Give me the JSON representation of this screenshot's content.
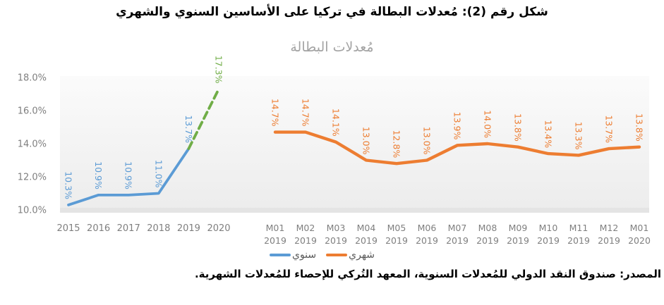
{
  "figure_title": "شكل رقم (2): مُعدلات البطالة في تركيا على الأساسين السنوي والشهري",
  "chart": {
    "title": "مُعدلات البطالة",
    "legend": [
      {
        "key": "annual",
        "label": "سنوي",
        "color": "#5B9BD5"
      },
      {
        "key": "monthly",
        "label": "شهري",
        "color": "#ED7D31"
      }
    ],
    "source": "المصدر: صندوق النقد الدولي للمُعدلات السنوية، المعهد التُركي للإحصاء للمُعدلات الشهرية."
  },
  "colors": {
    "annual_line": "#5B9BD5",
    "forecast_line": "#70AD47",
    "monthly_line": "#ED7D31",
    "axis_text": "#7F7F7F",
    "chart_title_text": "#A3A3A3",
    "legend_text": "#595959",
    "plot_bg_top": "#FBFBFB",
    "plot_bg_bottom": "#ECECEC",
    "axis_strip": "#E4E4E4"
  },
  "chart_data": {
    "type": "line",
    "title": "مُعدلات البطالة",
    "ylim": [
      10,
      18
    ],
    "grid": false,
    "legend_position": "bottom",
    "yticks": [
      {
        "value": 10,
        "label": "10.0%"
      },
      {
        "value": 12,
        "label": "12.0%"
      },
      {
        "value": 14,
        "label": "14.0%"
      },
      {
        "value": 16,
        "label": "16.0%"
      },
      {
        "value": 18,
        "label": "18.0%"
      }
    ],
    "series": [
      {
        "name": "سنوي",
        "color": "#5B9BD5",
        "categories": [
          "2015",
          "2016",
          "2017",
          "2018",
          "2019",
          "2020"
        ],
        "values": [
          10.3,
          10.9,
          10.9,
          11.0,
          13.7,
          17.3
        ],
        "labels": [
          "10.3%",
          "10.9%",
          "10.9%",
          "11.0%",
          "13.7%",
          "17.3%"
        ],
        "solid_through_index": 4,
        "forecast_style": "dashed",
        "forecast_color": "#70AD47"
      },
      {
        "name": "شهري",
        "color": "#ED7D31",
        "categories": [
          [
            "M01",
            "2019"
          ],
          [
            "M02",
            "2019"
          ],
          [
            "M03",
            "2019"
          ],
          [
            "M04",
            "2019"
          ],
          [
            "M05",
            "2019"
          ],
          [
            "M06",
            "2019"
          ],
          [
            "M07",
            "2019"
          ],
          [
            "M08",
            "2019"
          ],
          [
            "M09",
            "2019"
          ],
          [
            "M10",
            "2019"
          ],
          [
            "M11",
            "2019"
          ],
          [
            "M12",
            "2019"
          ],
          [
            "M01",
            "2020"
          ]
        ],
        "values": [
          14.7,
          14.7,
          14.1,
          13.0,
          12.8,
          13.0,
          13.9,
          14.0,
          13.8,
          13.4,
          13.3,
          13.7,
          13.8
        ],
        "labels": [
          "14.7%",
          "14.7%",
          "14.1%",
          "13.0%",
          "12.8%",
          "13.0%",
          "13.9%",
          "14.0%",
          "13.8%",
          "13.4%",
          "13.3%",
          "13.7%",
          "13.8%"
        ]
      }
    ]
  }
}
